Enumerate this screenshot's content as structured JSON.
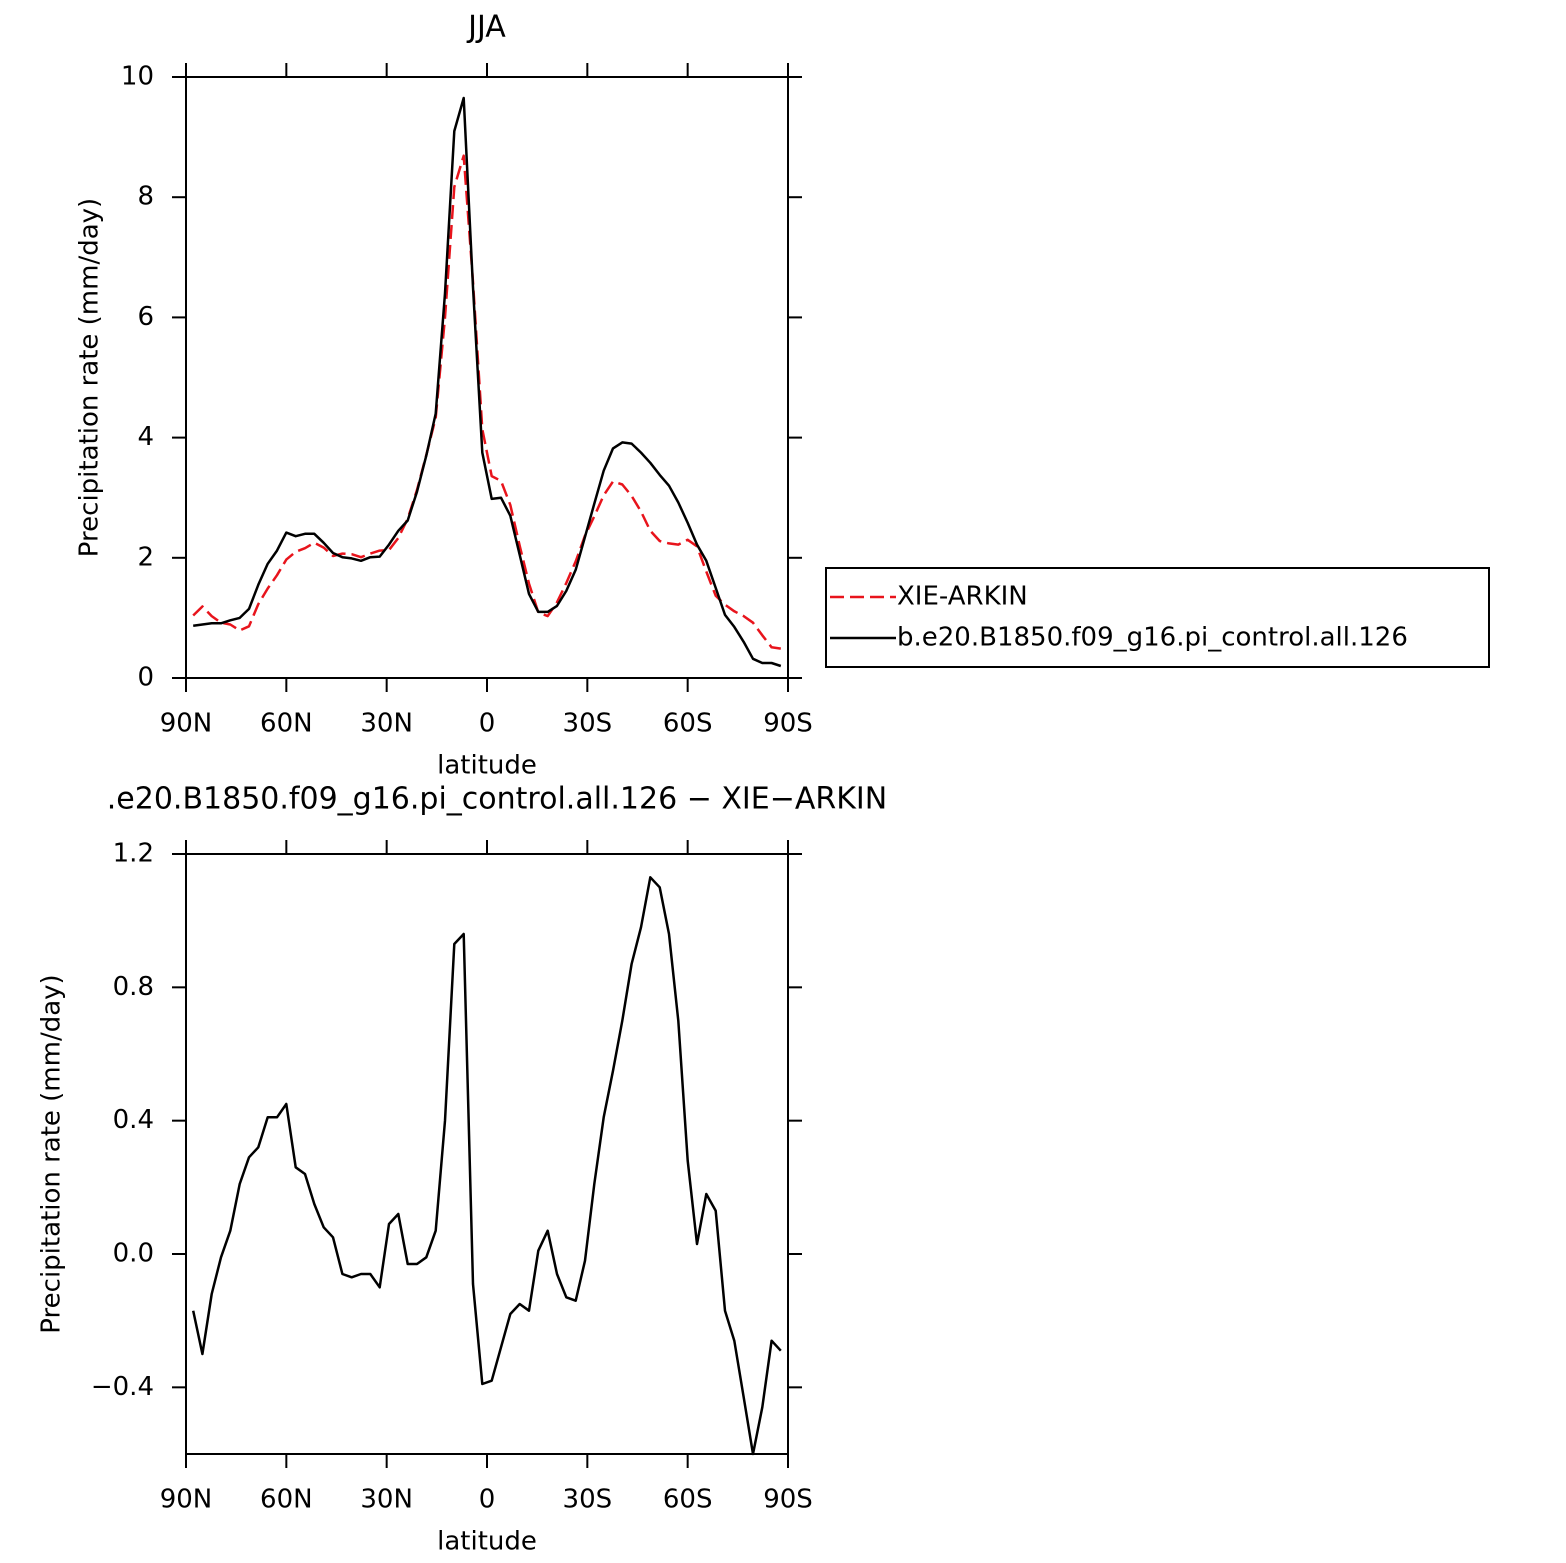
{
  "chart_data": [
    {
      "type": "line",
      "title": "JJA",
      "xlabel": "latitude",
      "ylabel": "Precipitation rate (mm/day)",
      "x": [
        87.86,
        85.1,
        82.31,
        79.53,
        76.74,
        73.95,
        71.16,
        68.37,
        65.58,
        62.79,
        60.0,
        57.21,
        54.42,
        51.63,
        48.84,
        46.05,
        43.25,
        40.46,
        37.67,
        34.88,
        32.09,
        29.3,
        26.51,
        23.72,
        20.93,
        18.14,
        15.35,
        12.56,
        9.77,
        6.98,
        4.19,
        1.4,
        -1.4,
        -4.19,
        -6.98,
        -9.77,
        -12.56,
        -15.35,
        -18.14,
        -20.93,
        -23.72,
        -26.51,
        -29.3,
        -32.09,
        -34.88,
        -37.67,
        -40.46,
        -43.25,
        -46.05,
        -48.84,
        -51.63,
        -54.42,
        -57.21,
        -60.0,
        -62.79,
        -65.58,
        -68.37,
        -71.16,
        -73.95,
        -76.74,
        -79.53,
        -82.31,
        -85.1,
        -87.86
      ],
      "series": [
        {
          "name": "XIE-ARKIN",
          "color": "#e8141c",
          "dashed": true,
          "values": [
            1.04,
            1.19,
            1.03,
            0.92,
            0.89,
            0.79,
            0.86,
            1.23,
            1.49,
            1.71,
            1.97,
            2.1,
            2.16,
            2.25,
            2.17,
            2.03,
            2.07,
            2.06,
            2.01,
            2.07,
            2.12,
            2.13,
            2.33,
            2.65,
            3.13,
            3.71,
            4.33,
            6.0,
            8.17,
            8.69,
            6.59,
            4.14,
            3.36,
            3.28,
            2.88,
            2.2,
            1.57,
            1.09,
            1.03,
            1.26,
            1.58,
            1.94,
            2.37,
            2.69,
            3.04,
            3.27,
            3.22,
            3.03,
            2.77,
            2.45,
            2.28,
            2.24,
            2.22,
            2.3,
            2.19,
            1.77,
            1.37,
            1.22,
            1.11,
            1.03,
            0.92,
            0.71,
            0.51,
            0.49
          ]
        },
        {
          "name": "b.e20.B1850.f09_g16.pi_control.all.126",
          "color": "#000000",
          "dashed": false,
          "values": [
            0.87,
            0.89,
            0.91,
            0.91,
            0.96,
            1.0,
            1.15,
            1.55,
            1.9,
            2.12,
            2.42,
            2.36,
            2.4,
            2.4,
            2.25,
            2.08,
            2.01,
            1.99,
            1.95,
            2.01,
            2.02,
            2.22,
            2.45,
            2.62,
            3.1,
            3.7,
            4.4,
            6.4,
            9.1,
            9.65,
            6.5,
            3.75,
            2.98,
            3.0,
            2.7,
            2.05,
            1.4,
            1.1,
            1.1,
            1.2,
            1.45,
            1.8,
            2.35,
            2.9,
            3.45,
            3.82,
            3.92,
            3.9,
            3.75,
            3.58,
            3.38,
            3.2,
            2.92,
            2.58,
            2.22,
            1.95,
            1.5,
            1.05,
            0.85,
            0.6,
            0.32,
            0.25,
            0.25,
            0.2
          ]
        }
      ],
      "xlim": [
        90,
        -90
      ],
      "xticks": [
        {
          "value": 90,
          "label": "90N"
        },
        {
          "value": 60,
          "label": "60N"
        },
        {
          "value": 30,
          "label": "30N"
        },
        0,
        {
          "value": -30,
          "label": "30S"
        },
        {
          "value": -60,
          "label": "60S"
        },
        {
          "value": -90,
          "label": "90S"
        }
      ],
      "ylim": [
        0,
        10
      ],
      "yticks": [
        0,
        2,
        4,
        6,
        8,
        10
      ],
      "legend": "right"
    },
    {
      "type": "line",
      "title": ".e20.B1850.f09_g16.pi_control.all.126 − XIE−ARKIN",
      "xlabel": "latitude",
      "ylabel": "Precipitation rate (mm/day)",
      "x": [
        87.86,
        85.1,
        82.31,
        79.53,
        76.74,
        73.95,
        71.16,
        68.37,
        65.58,
        62.79,
        60.0,
        57.21,
        54.42,
        51.63,
        48.84,
        46.05,
        43.25,
        40.46,
        37.67,
        34.88,
        32.09,
        29.3,
        26.51,
        23.72,
        20.93,
        18.14,
        15.35,
        12.56,
        9.77,
        6.98,
        4.19,
        1.4,
        -1.4,
        -4.19,
        -6.98,
        -9.77,
        -12.56,
        -15.35,
        -18.14,
        -20.93,
        -23.72,
        -26.51,
        -29.3,
        -32.09,
        -34.88,
        -37.67,
        -40.46,
        -43.25,
        -46.05,
        -48.84,
        -51.63,
        -54.42,
        -57.21,
        -60.0,
        -62.79,
        -65.58,
        -68.37,
        -71.16,
        -73.95,
        -76.74,
        -79.53,
        -82.31,
        -85.1,
        -87.86
      ],
      "values": [
        -0.17,
        -0.3,
        -0.12,
        -0.01,
        0.07,
        0.21,
        0.29,
        0.32,
        0.41,
        0.41,
        0.45,
        0.26,
        0.24,
        0.15,
        0.08,
        0.05,
        -0.06,
        -0.07,
        -0.06,
        -0.06,
        -0.1,
        0.09,
        0.12,
        -0.03,
        -0.03,
        -0.01,
        0.07,
        0.4,
        0.93,
        0.96,
        -0.09,
        -0.39,
        -0.38,
        -0.28,
        -0.18,
        -0.15,
        -0.17,
        0.01,
        0.07,
        -0.06,
        -0.13,
        -0.14,
        -0.02,
        0.21,
        0.41,
        0.55,
        0.7,
        0.87,
        0.98,
        1.13,
        1.1,
        0.96,
        0.7,
        0.28,
        0.03,
        0.18,
        0.13,
        -0.17,
        -0.26,
        -0.43,
        -0.6,
        -0.46,
        -0.26,
        -0.29
      ],
      "color": "#000000",
      "xlim": [
        90,
        -90
      ],
      "xticks": [
        {
          "value": 90,
          "label": "90N"
        },
        {
          "value": 60,
          "label": "60N"
        },
        {
          "value": 30,
          "label": "30N"
        },
        0,
        {
          "value": -30,
          "label": "30S"
        },
        {
          "value": -60,
          "label": "60S"
        },
        {
          "value": -90,
          "label": "90S"
        }
      ],
      "ylim": [
        -0.6,
        1.2
      ],
      "yticks": [
        {
          "value": -0.4,
          "label": "−0.4"
        },
        {
          "value": 0,
          "label": "0.0"
        },
        0.4,
        0.8,
        1.2
      ]
    }
  ]
}
